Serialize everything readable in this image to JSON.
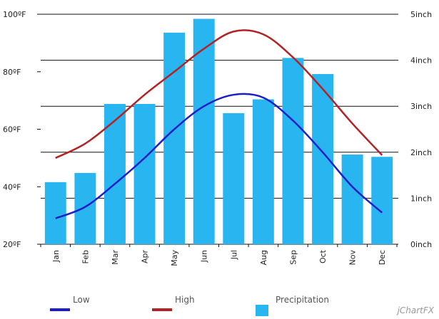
{
  "chart_data": {
    "type": "bar",
    "categories": [
      "Jan",
      "Feb",
      "Mar",
      "Apr",
      "May",
      "Jun",
      "Jul",
      "Aug",
      "Sep",
      "Oct",
      "Nov",
      "Dec"
    ],
    "series": [
      {
        "name": "Low",
        "type": "line",
        "axis": "left",
        "color": "#1a1fc9",
        "values": [
          29,
          33,
          41,
          50,
          60,
          68,
          72,
          71,
          63,
          52,
          40,
          31
        ]
      },
      {
        "name": "High",
        "type": "line",
        "axis": "left",
        "color": "#b22326",
        "values": [
          50,
          55,
          63,
          72,
          80,
          88,
          94,
          93,
          85,
          74,
          62,
          51
        ]
      },
      {
        "name": "Precipitation",
        "type": "bar",
        "axis": "right",
        "color": "#29b6f0",
        "values": [
          1.35,
          1.55,
          3.05,
          3.05,
          4.6,
          4.9,
          2.85,
          3.15,
          4.05,
          3.7,
          1.95,
          1.9
        ]
      }
    ],
    "left_axis": {
      "ylim": [
        20,
        100
      ],
      "ticks": [
        "20ºF",
        "40ºF",
        "60ºF",
        "80ºF",
        "100ºF"
      ],
      "tick_values": [
        20,
        40,
        60,
        80,
        100
      ]
    },
    "right_axis": {
      "ylim": [
        0,
        5
      ],
      "ticks": [
        "0inch",
        "1inch",
        "2inch",
        "3inch",
        "4inch",
        "5inch"
      ],
      "tick_values": [
        0,
        1,
        2,
        3,
        4,
        5
      ]
    },
    "grid": true,
    "legend_position": "bottom"
  },
  "branding": "jChartFX"
}
